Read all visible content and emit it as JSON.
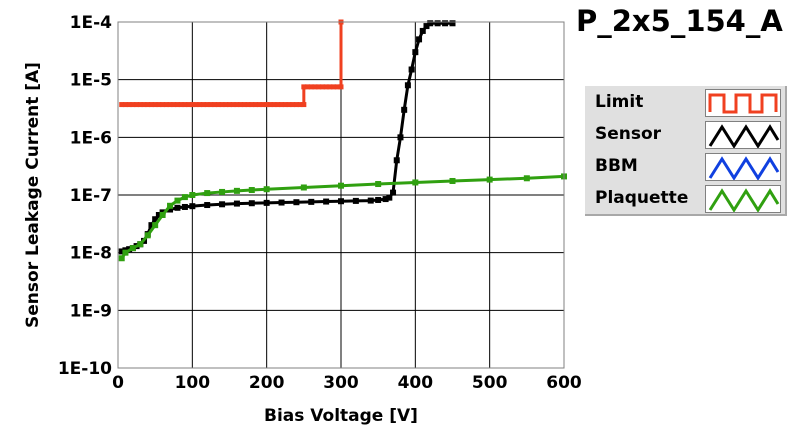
{
  "chart_data": {
    "type": "line",
    "title": "P_2x5_154_A",
    "xlabel": "Bias Voltage [V]",
    "ylabel": "Sensor Leakage Current [A]",
    "xlim": [
      0,
      600
    ],
    "ylim": [
      1e-10,
      0.0001
    ],
    "y_scale": "log",
    "grid": true,
    "legend_position": "right",
    "x_ticks": [
      0,
      100,
      200,
      300,
      400,
      500,
      600
    ],
    "x_tick_labels": [
      "0",
      "100",
      "200",
      "300",
      "400",
      "500",
      "600"
    ],
    "y_ticks": [
      1e-10,
      1e-09,
      1e-08,
      1e-07,
      1e-06,
      1e-05,
      0.0001
    ],
    "y_tick_labels": [
      "1E-10",
      "1E-9",
      "1E-8",
      "1E-7",
      "1E-6",
      "1E-5",
      "1E-4"
    ],
    "series": [
      {
        "name": "Limit",
        "color": "#f04020",
        "step": true,
        "x": [
          5,
          250,
          300,
          300
        ],
        "y": [
          3.7e-06,
          7.5e-06,
          0.0001,
          0.0001
        ]
      },
      {
        "name": "Sensor",
        "color": "#000000",
        "step": false,
        "x": [
          5,
          10,
          15,
          20,
          25,
          30,
          35,
          40,
          45,
          50,
          55,
          60,
          70,
          80,
          90,
          100,
          120,
          140,
          160,
          180,
          200,
          220,
          240,
          260,
          280,
          300,
          320,
          340,
          350,
          360,
          365,
          370,
          375,
          380,
          385,
          390,
          395,
          400,
          405,
          410,
          415,
          420,
          430,
          440,
          450
        ],
        "y": [
          1.05e-08,
          1.1e-08,
          1.15e-08,
          1.2e-08,
          1.3e-08,
          1.4e-08,
          1.6e-08,
          2.1e-08,
          3e-08,
          3.8e-08,
          4.5e-08,
          5e-08,
          5.6e-08,
          6e-08,
          6.2e-08,
          6.4e-08,
          6.7e-08,
          6.9e-08,
          7.1e-08,
          7.2e-08,
          7.3e-08,
          7.4e-08,
          7.5e-08,
          7.6e-08,
          7.7e-08,
          7.8e-08,
          7.9e-08,
          8e-08,
          8.2e-08,
          8.5e-08,
          9e-08,
          1.1e-07,
          4e-07,
          1e-06,
          3e-06,
          8e-06,
          1.5e-05,
          3e-05,
          5e-05,
          7e-05,
          8.5e-05,
          9.5e-05,
          9.5e-05,
          9.5e-05,
          9.5e-05
        ]
      },
      {
        "name": "BBM",
        "color": "#1040e0",
        "step": false,
        "x": [],
        "y": []
      },
      {
        "name": "Plaquette",
        "color": "#30a010",
        "step": false,
        "x": [
          5,
          10,
          20,
          30,
          40,
          50,
          60,
          70,
          80,
          90,
          100,
          120,
          140,
          160,
          180,
          200,
          250,
          300,
          350,
          400,
          450,
          500,
          550,
          600
        ],
        "y": [
          8e-09,
          1e-08,
          1.2e-08,
          1.4e-08,
          2e-08,
          3e-08,
          4.5e-08,
          6.5e-08,
          8e-08,
          9.2e-08,
          1e-07,
          1.08e-07,
          1.13e-07,
          1.18e-07,
          1.22e-07,
          1.26e-07,
          1.35e-07,
          1.45e-07,
          1.55e-07,
          1.65e-07,
          1.75e-07,
          1.85e-07,
          1.95e-07,
          2.1e-07
        ]
      }
    ]
  }
}
